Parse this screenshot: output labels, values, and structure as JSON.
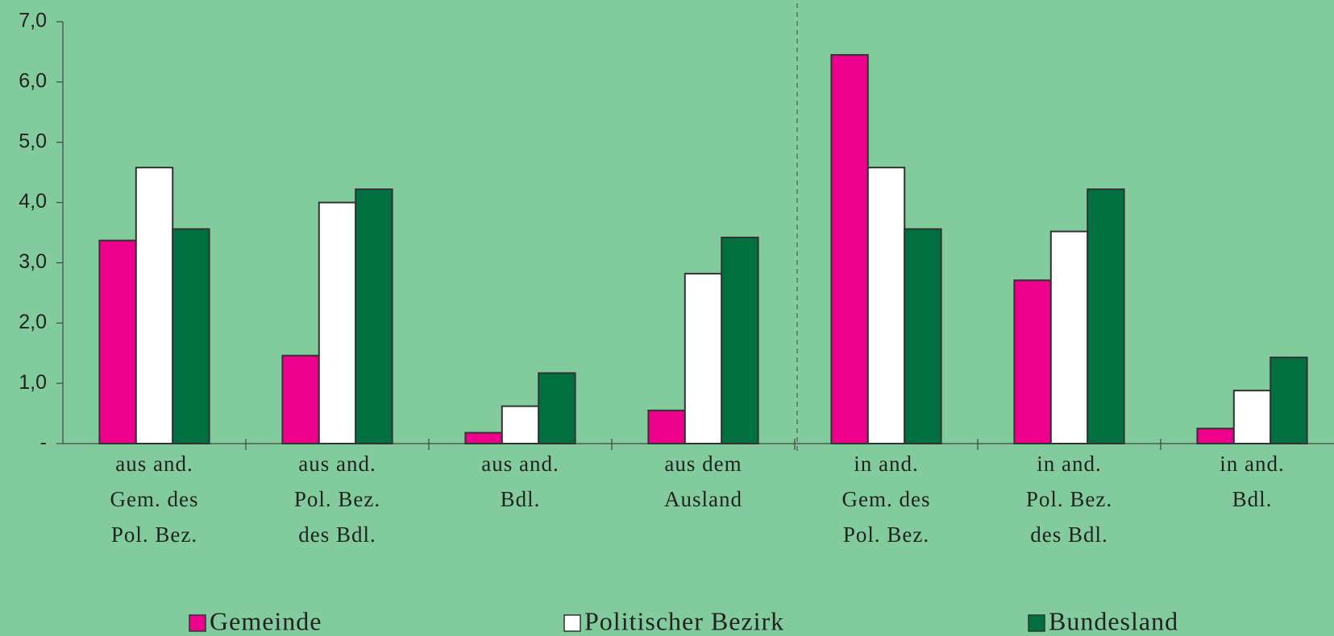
{
  "chart_data": {
    "type": "bar",
    "categories": [
      [
        "aus and.",
        "Gem. des",
        "Pol. Bez."
      ],
      [
        "aus and.",
        "Pol. Bez.",
        "des Bdl."
      ],
      [
        "aus and.",
        "Bdl."
      ],
      [
        "aus dem",
        "Ausland"
      ],
      [
        "in and.",
        "Gem. des",
        "Pol. Bez."
      ],
      [
        "in and.",
        "Pol. Bez.",
        "des Bdl."
      ],
      [
        "in and.",
        "Bdl."
      ]
    ],
    "series": [
      {
        "name": "Gemeinde",
        "color": "#ec008c",
        "values": [
          3.37,
          1.46,
          0.18,
          0.55,
          6.45,
          2.71,
          0.25
        ]
      },
      {
        "name": "Politischer Bezirk",
        "color": "#ffffff",
        "values": [
          4.58,
          4.0,
          0.62,
          2.82,
          4.58,
          3.52,
          0.88
        ]
      },
      {
        "name": "Bundesland",
        "color": "#007040",
        "values": [
          3.56,
          4.22,
          1.17,
          3.42,
          3.56,
          4.22,
          1.43
        ]
      }
    ],
    "ylim": [
      0,
      7
    ],
    "yticks": [
      {
        "value": 0,
        "label": "-"
      },
      {
        "value": 1,
        "label": "1,0"
      },
      {
        "value": 2,
        "label": "2,0"
      },
      {
        "value": 3,
        "label": "3,0"
      },
      {
        "value": 4,
        "label": "4,0"
      },
      {
        "value": 5,
        "label": "5,0"
      },
      {
        "value": 6,
        "label": "6,0"
      },
      {
        "value": 7,
        "label": "7,0"
      }
    ],
    "legend": "bottom"
  }
}
